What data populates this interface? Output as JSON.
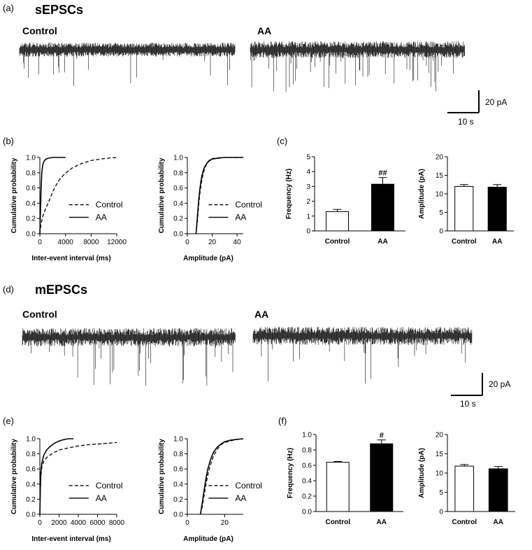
{
  "figure": {
    "panel_a": {
      "letter": "(a)",
      "title": "sEPSCs",
      "label_control": "Control",
      "label_aa": "AA",
      "scale_y": "20 pA",
      "scale_x": "10 s"
    },
    "panel_d": {
      "letter": "(d)",
      "title": "mEPSCs",
      "label_control": "Control",
      "label_aa": "AA",
      "scale_y": "20 pA",
      "scale_x": "10 s"
    },
    "panel_b": {
      "letter": "(b)"
    },
    "panel_c": {
      "letter": "(c)"
    },
    "panel_e": {
      "letter": "(e)"
    },
    "panel_f": {
      "letter": "(f)"
    }
  },
  "colors": {
    "line": "#000000",
    "aa_bar": "#000000",
    "control_bar": "#ffffff",
    "trace": "#111111"
  },
  "chart_data": [
    {
      "id": "b-interval",
      "type": "line",
      "xlabel": "Inter-event interval (ms)",
      "ylabel": "Cumulative probability",
      "xlim": [
        0,
        12000
      ],
      "ylim": [
        0,
        1.0
      ],
      "xticks": [
        0,
        4000,
        8000,
        12000
      ],
      "xtick_labels": [
        "0",
        "4000",
        "8000",
        "12000"
      ],
      "yticks": [
        0,
        0.2,
        0.4,
        0.6,
        0.8,
        1.0
      ],
      "ytick_labels": [
        "0.0",
        "0.2",
        "0.4",
        "0.6",
        "0.8",
        "1.0"
      ],
      "legend": "bottom-right",
      "series": [
        {
          "name": "Control",
          "dash": true,
          "x": [
            0,
            200,
            500,
            900,
            1400,
            2000,
            2800,
            3800,
            5000,
            6500,
            8000,
            10000,
            12000
          ],
          "y": [
            0,
            0.13,
            0.24,
            0.33,
            0.42,
            0.55,
            0.68,
            0.78,
            0.86,
            0.92,
            0.96,
            0.985,
            1.0
          ]
        },
        {
          "name": "AA",
          "dash": false,
          "x": [
            0,
            100,
            200,
            300,
            450,
            650,
            900,
            1300,
            2000,
            3000,
            4000
          ],
          "y": [
            0,
            0.3,
            0.6,
            0.8,
            0.9,
            0.95,
            0.975,
            0.99,
            1.0,
            1.0,
            1.0
          ]
        }
      ]
    },
    {
      "id": "b-amplitude",
      "type": "line",
      "xlabel": "Amplitude (pA)",
      "ylabel": "Cumulative probability",
      "xlim": [
        0,
        45
      ],
      "ylim": [
        0,
        1.0
      ],
      "xticks": [
        0,
        20,
        40
      ],
      "xtick_labels": [
        "0",
        "20",
        "40"
      ],
      "yticks": [
        0,
        0.2,
        0.4,
        0.6,
        0.8,
        1.0
      ],
      "ytick_labels": [
        "0.0",
        "0.2",
        "0.4",
        "0.6",
        "0.8",
        "1.0"
      ],
      "legend": "bottom-right",
      "series": [
        {
          "name": "Control",
          "dash": true,
          "x": [
            7,
            8,
            9,
            10,
            11,
            12,
            13,
            14,
            16,
            18,
            20,
            25,
            30,
            45
          ],
          "y": [
            0,
            0.15,
            0.35,
            0.52,
            0.64,
            0.73,
            0.8,
            0.86,
            0.93,
            0.97,
            0.985,
            0.995,
            1.0,
            1.0
          ]
        },
        {
          "name": "AA",
          "dash": false,
          "x": [
            7,
            8,
            9,
            10,
            11,
            12,
            13,
            14,
            16,
            18,
            20,
            25,
            30,
            45
          ],
          "y": [
            0,
            0.2,
            0.42,
            0.58,
            0.7,
            0.78,
            0.84,
            0.88,
            0.93,
            0.96,
            0.98,
            0.99,
            1.0,
            1.0
          ]
        }
      ]
    },
    {
      "id": "c-frequency",
      "type": "bar",
      "ylabel": "Frequency (Hz)",
      "categories": [
        "Control",
        "AA"
      ],
      "values": [
        1.3,
        3.15
      ],
      "errors": [
        0.15,
        0.45
      ],
      "annotations": [
        "",
        "##"
      ],
      "ylim": [
        0,
        5
      ],
      "yticks": [
        0,
        1,
        2,
        3,
        4,
        5
      ],
      "ytick_labels": [
        "0",
        "1",
        "2",
        "3",
        "4",
        "5"
      ]
    },
    {
      "id": "c-amplitude",
      "type": "bar",
      "ylabel": "Amplitude (pA)",
      "categories": [
        "Control",
        "AA"
      ],
      "values": [
        12.0,
        11.8
      ],
      "errors": [
        0.5,
        0.7
      ],
      "annotations": [
        "",
        ""
      ],
      "ylim": [
        0,
        20
      ],
      "yticks": [
        0,
        5,
        10,
        15,
        20
      ],
      "ytick_labels": [
        "0",
        "5",
        "10",
        "15",
        "20"
      ]
    },
    {
      "id": "e-interval",
      "type": "line",
      "xlabel": "Inter-event interval (ms)",
      "ylabel": "Cumulative probability",
      "xlim": [
        0,
        8000
      ],
      "ylim": [
        0,
        1.0
      ],
      "xticks": [
        0,
        2000,
        4000,
        6000,
        8000
      ],
      "xtick_labels": [
        "0",
        "2000",
        "4000",
        "6000",
        "8000"
      ],
      "yticks": [
        0,
        0.2,
        0.4,
        0.6,
        0.8,
        1.0
      ],
      "ytick_labels": [
        "0.0",
        "0.2",
        "0.4",
        "0.6",
        "0.8",
        "1.0"
      ],
      "legend": "bottom-right",
      "series": [
        {
          "name": "Control",
          "dash": true,
          "x": [
            0,
            50,
            100,
            200,
            400,
            700,
            1000,
            1500,
            2000,
            3000,
            4000,
            5000,
            6000,
            7000,
            8000
          ],
          "y": [
            0,
            0.3,
            0.5,
            0.62,
            0.7,
            0.75,
            0.78,
            0.82,
            0.85,
            0.88,
            0.905,
            0.92,
            0.93,
            0.94,
            0.95
          ]
        },
        {
          "name": "AA",
          "dash": false,
          "x": [
            0,
            50,
            100,
            200,
            400,
            700,
            1000,
            1500,
            2000,
            2500,
            3000,
            3500
          ],
          "y": [
            0,
            0.35,
            0.55,
            0.68,
            0.78,
            0.85,
            0.89,
            0.94,
            0.97,
            0.99,
            1.0,
            1.0
          ]
        }
      ]
    },
    {
      "id": "e-amplitude",
      "type": "line",
      "xlabel": "Amplitude (pA)",
      "ylabel": "Cumulative probability",
      "xlim": [
        0,
        30
      ],
      "ylim": [
        0,
        1.0
      ],
      "xticks": [
        0,
        20
      ],
      "xtick_labels": [
        "0",
        "20"
      ],
      "yticks": [
        0,
        0.2,
        0.4,
        0.6,
        0.8,
        1.0
      ],
      "ytick_labels": [
        "0.0",
        "0.2",
        "0.4",
        "0.6",
        "0.8",
        "1.0"
      ],
      "legend": "bottom-right",
      "series": [
        {
          "name": "Control",
          "dash": true,
          "x": [
            7,
            8,
            9,
            10,
            11,
            12,
            13,
            14,
            16,
            18,
            20,
            23,
            26,
            30
          ],
          "y": [
            0,
            0.1,
            0.25,
            0.4,
            0.52,
            0.62,
            0.7,
            0.77,
            0.86,
            0.92,
            0.95,
            0.97,
            0.99,
            1.0
          ]
        },
        {
          "name": "AA",
          "dash": false,
          "x": [
            7,
            8,
            9,
            10,
            11,
            12,
            13,
            14,
            16,
            18,
            20,
            23,
            26,
            30
          ],
          "y": [
            0,
            0.15,
            0.32,
            0.48,
            0.6,
            0.69,
            0.76,
            0.82,
            0.89,
            0.93,
            0.96,
            0.98,
            0.99,
            1.0
          ]
        }
      ]
    },
    {
      "id": "f-frequency",
      "type": "bar",
      "ylabel": "Frequency (Hz)",
      "categories": [
        "Control",
        "AA"
      ],
      "values": [
        0.64,
        0.88
      ],
      "errors": [
        0.01,
        0.05
      ],
      "annotations": [
        "",
        "#"
      ],
      "ylim": [
        0,
        1.0
      ],
      "yticks": [
        0,
        0.2,
        0.4,
        0.6,
        0.8,
        1.0
      ],
      "ytick_labels": [
        "0.0",
        "0.2",
        "0.4",
        "0.6",
        "0.8",
        "1.0"
      ]
    },
    {
      "id": "f-amplitude",
      "type": "bar",
      "ylabel": "Amplitude (pA)",
      "categories": [
        "Control",
        "AA"
      ],
      "values": [
        11.8,
        11.1
      ],
      "errors": [
        0.4,
        0.6
      ],
      "annotations": [
        "",
        ""
      ],
      "ylim": [
        0,
        20
      ],
      "yticks": [
        0,
        5,
        10,
        15,
        20
      ],
      "ytick_labels": [
        "0",
        "5",
        "10",
        "15",
        "20"
      ]
    }
  ]
}
